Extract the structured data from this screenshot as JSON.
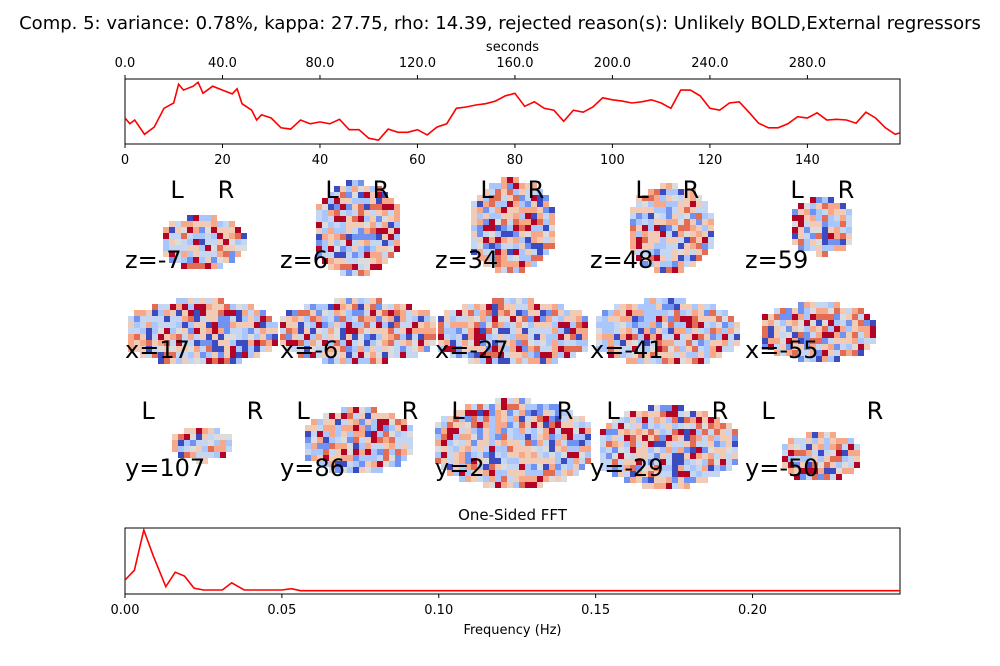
{
  "title": "Comp. 5: variance: 0.78%, kappa: 27.75, rho: 14.39, rejected reason(s): Unlikely BOLD,External regressors",
  "chart_data": [
    {
      "type": "line",
      "color": "#ff0000",
      "x2_label": "seconds",
      "x": [
        0,
        1,
        2,
        4,
        6,
        8,
        10,
        11,
        12,
        14,
        15,
        16,
        18,
        20,
        22,
        23,
        24,
        26,
        27,
        28,
        30,
        32,
        34,
        36,
        38,
        40,
        42,
        44,
        46,
        48,
        50,
        52,
        54,
        56,
        58,
        60,
        62,
        64,
        66,
        68,
        70,
        72,
        74,
        76,
        78,
        80,
        82,
        84,
        86,
        88,
        90,
        92,
        94,
        96,
        98,
        100,
        102,
        104,
        106,
        108,
        110,
        112,
        114,
        116,
        118,
        120,
        122,
        124,
        126,
        128,
        130,
        132,
        134,
        136,
        138,
        140,
        142,
        144,
        146,
        148,
        150,
        152,
        154,
        156,
        158,
        159
      ],
      "values": [
        0.4,
        0.31,
        0.37,
        0.15,
        0.26,
        0.55,
        0.63,
        0.92,
        0.83,
        0.89,
        0.95,
        0.78,
        0.89,
        0.83,
        0.77,
        0.85,
        0.62,
        0.52,
        0.37,
        0.45,
        0.4,
        0.25,
        0.23,
        0.37,
        0.31,
        0.34,
        0.31,
        0.38,
        0.22,
        0.22,
        0.09,
        0.06,
        0.23,
        0.18,
        0.18,
        0.22,
        0.14,
        0.26,
        0.31,
        0.55,
        0.57,
        0.6,
        0.62,
        0.66,
        0.74,
        0.78,
        0.58,
        0.65,
        0.55,
        0.52,
        0.35,
        0.52,
        0.49,
        0.57,
        0.71,
        0.68,
        0.66,
        0.63,
        0.65,
        0.68,
        0.63,
        0.55,
        0.83,
        0.83,
        0.74,
        0.55,
        0.52,
        0.63,
        0.65,
        0.49,
        0.32,
        0.25,
        0.25,
        0.31,
        0.42,
        0.4,
        0.48,
        0.37,
        0.38,
        0.37,
        0.32,
        0.49,
        0.4,
        0.25,
        0.15,
        0.17
      ],
      "xlim": [
        0,
        159
      ],
      "ylim": [
        0,
        1
      ],
      "xticks": [
        0,
        20,
        40,
        60,
        80,
        100,
        120,
        140
      ],
      "x2lim": [
        0,
        318
      ],
      "x2ticks": [
        {
          "value": 0,
          "label": "0.0"
        },
        {
          "value": 40,
          "label": "40.0"
        },
        {
          "value": 80,
          "label": "80.0"
        },
        {
          "value": 120,
          "label": "120.0"
        },
        {
          "value": 160,
          "label": "160.0"
        },
        {
          "value": 200,
          "label": "200.0"
        },
        {
          "value": 240,
          "label": "240.0"
        },
        {
          "value": 280,
          "label": "280.0"
        }
      ]
    },
    {
      "type": "line",
      "color": "#ff0000",
      "title": "One-Sided FFT",
      "x_label": "Frequency (Hz)",
      "x": [
        0,
        0.003,
        0.006,
        0.009,
        0.013,
        0.016,
        0.019,
        0.022,
        0.025,
        0.028,
        0.031,
        0.034,
        0.038,
        0.05,
        0.053,
        0.056,
        0.1,
        0.15,
        0.2,
        0.247
      ],
      "values": [
        0.21,
        0.36,
        0.97,
        0.58,
        0.11,
        0.33,
        0.27,
        0.09,
        0.06,
        0.06,
        0.06,
        0.17,
        0.06,
        0.06,
        0.08,
        0.05,
        0.05,
        0.05,
        0.05,
        0.05
      ],
      "xlim": [
        0,
        0.247
      ],
      "ylim": [
        0,
        1
      ],
      "xticks": [
        {
          "value": 0,
          "label": "0.00"
        },
        {
          "value": 0.05,
          "label": "0.05"
        },
        {
          "value": 0.1,
          "label": "0.10"
        },
        {
          "value": 0.15,
          "label": "0.15"
        },
        {
          "value": 0.2,
          "label": "0.20"
        }
      ]
    }
  ],
  "slices": [
    {
      "left": "L",
      "right": "R",
      "labels": [
        "z=-7",
        "z=6",
        "z=34",
        "z=48",
        "z=59"
      ]
    },
    {
      "labels": [
        "x=17",
        "x=-6",
        "x=-27",
        "x=-41",
        "x=-55"
      ]
    },
    {
      "left": "L",
      "right": "R",
      "labels": [
        "y=107",
        "y=86",
        "y=2",
        "y=-29",
        "y=-50"
      ]
    }
  ]
}
